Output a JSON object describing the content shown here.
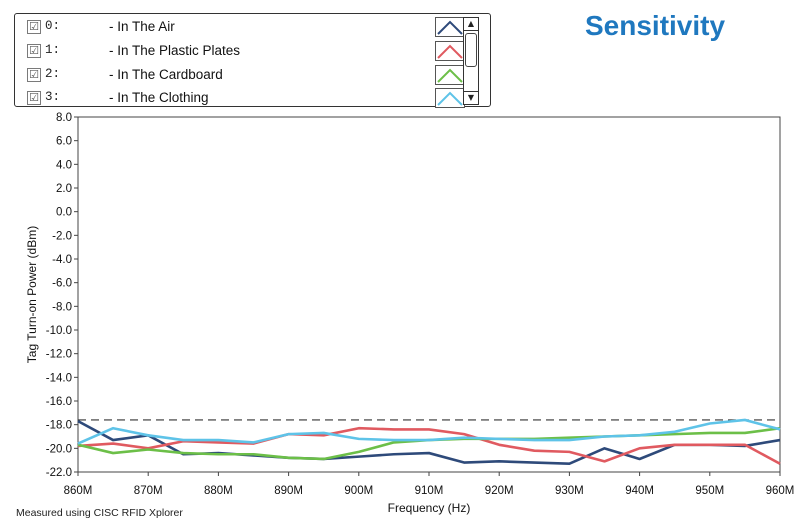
{
  "title": "Sensitivity",
  "footnote": "Measured using CISC RFID Xplorer",
  "legend": {
    "items": [
      {
        "index": "0:",
        "label": "- In The Air",
        "checked": true,
        "color": "#2e4a7a",
        "check_glyph": "☑"
      },
      {
        "index": "1:",
        "label": "- In The Plastic Plates",
        "checked": true,
        "color": "#e05a60",
        "check_glyph": "☑"
      },
      {
        "index": "2:",
        "label": "- In The Cardboard",
        "checked": true,
        "color": "#6cbf48",
        "check_glyph": "☑"
      },
      {
        "index": "3:",
        "label": "- In The Clothing",
        "checked": true,
        "color": "#5ec3e8",
        "check_glyph": "☑"
      }
    ],
    "scroll_up_glyph": "▲",
    "scroll_down_glyph": "▼"
  },
  "chart_data": {
    "type": "line",
    "title": "Sensitivity",
    "xlabel": "Frequency (Hz)",
    "ylabel": "Tag Turn-on Power (dBm)",
    "xlim": [
      860,
      960
    ],
    "ylim": [
      -22,
      8
    ],
    "x_ticks": [
      860,
      870,
      880,
      890,
      900,
      910,
      920,
      930,
      940,
      950,
      960
    ],
    "x_tick_labels": [
      "860M",
      "870M",
      "880M",
      "890M",
      "900M",
      "910M",
      "920M",
      "930M",
      "940M",
      "950M",
      "960M"
    ],
    "y_ticks": [
      8,
      6,
      4,
      2,
      0,
      -2,
      -4,
      -6,
      -8,
      -10,
      -12,
      -14,
      -16,
      -18,
      -20,
      -22
    ],
    "y_tick_labels": [
      "8.0",
      "6.0",
      "4.0",
      "2.0",
      "0.0",
      "-2.0",
      "-4.0",
      "-6.0",
      "-8.0",
      "-10.0",
      "-12.0",
      "-14.0",
      "-16.0",
      "-18.0",
      "-20.0",
      "-22.0"
    ],
    "grid": false,
    "reference_line": {
      "y": -17.6,
      "style": "dashed",
      "color": "#333333"
    },
    "x": [
      860,
      865,
      870,
      875,
      880,
      885,
      890,
      895,
      900,
      905,
      910,
      915,
      920,
      925,
      930,
      935,
      940,
      945,
      950,
      955,
      960
    ],
    "series": [
      {
        "name": "In The Air",
        "color": "#2e4a7a",
        "values": [
          -17.7,
          -19.3,
          -18.9,
          -20.5,
          -20.4,
          -20.6,
          -20.8,
          -20.9,
          -20.7,
          -20.5,
          -20.4,
          -21.2,
          -21.1,
          -21.2,
          -21.3,
          -20.0,
          -20.9,
          -19.7,
          -19.7,
          -19.8,
          -19.3
        ]
      },
      {
        "name": "In The Plastic Plates",
        "color": "#e05a60",
        "values": [
          -19.8,
          -19.6,
          -20.0,
          -19.4,
          -19.5,
          -19.6,
          -18.8,
          -18.9,
          -18.3,
          -18.4,
          -18.4,
          -18.8,
          -19.7,
          -20.2,
          -20.3,
          -21.1,
          -20.0,
          -19.7,
          -19.7,
          -19.7,
          -21.3
        ]
      },
      {
        "name": "In The Cardboard",
        "color": "#6cbf48",
        "values": [
          -19.7,
          -20.4,
          -20.1,
          -20.4,
          -20.5,
          -20.5,
          -20.8,
          -20.9,
          -20.3,
          -19.5,
          -19.3,
          -19.2,
          -19.2,
          -19.2,
          -19.1,
          -19.0,
          -18.9,
          -18.8,
          -18.7,
          -18.7,
          -18.3
        ]
      },
      {
        "name": "In The Clothing",
        "color": "#5ec3e8",
        "values": [
          -19.6,
          -18.3,
          -18.9,
          -19.3,
          -19.3,
          -19.5,
          -18.8,
          -18.7,
          -19.2,
          -19.3,
          -19.3,
          -19.1,
          -19.2,
          -19.3,
          -19.3,
          -19.0,
          -18.9,
          -18.6,
          -17.9,
          -17.6,
          -18.4
        ]
      }
    ]
  }
}
